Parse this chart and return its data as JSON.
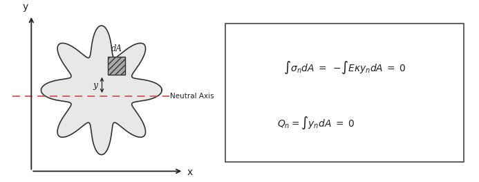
{
  "fig_width": 6.93,
  "fig_height": 2.63,
  "dpi": 100,
  "background_color": "#ffffff",
  "blob_color": "#e8e8e8",
  "blob_edge_color": "#333333",
  "neutral_axis_color": "#cc5555",
  "neutral_axis_style": "--",
  "dA_box_color": "#aaaaaa",
  "dA_box_edge": "#333333",
  "axis_color": "#222222",
  "text_color": "#222222",
  "eq_box_color": "#ffffff",
  "eq_box_edge": "#444444",
  "equation1": "$\\int \\sigma_n dA\\; =\\; -\\!\\int E\\kappa y_n dA\\; =\\; 0$",
  "equation2": "$Q_n = \\int y_n dA\\; =\\; 0$",
  "label_y": "y",
  "label_x": "x",
  "label_dA": "dA",
  "label_yn": "y",
  "label_neutral": "Neutral Axis"
}
